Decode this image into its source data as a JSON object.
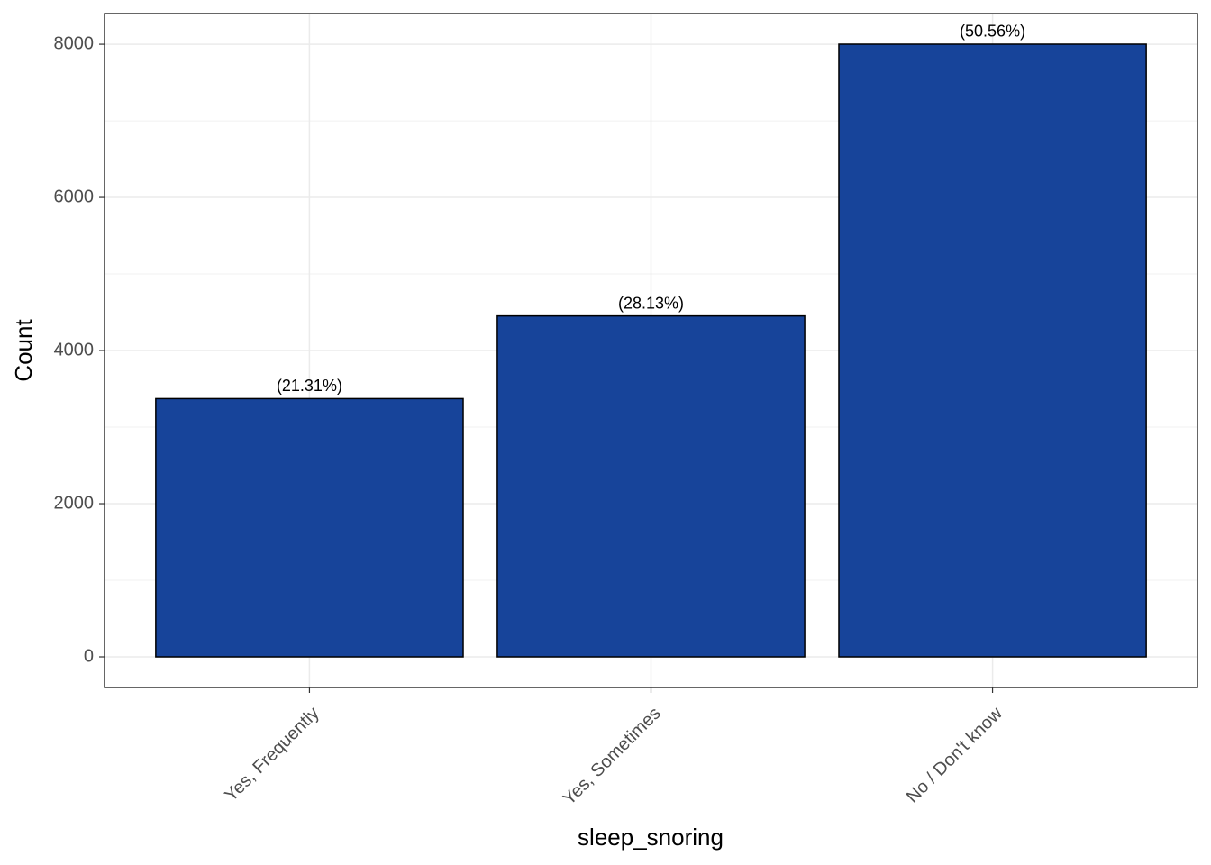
{
  "chart_data": {
    "type": "bar",
    "x_label": "sleep_snoring",
    "y_label": "Count",
    "categories": [
      "Yes, Frequently",
      "Yes, Sometimes",
      "No / Don't know"
    ],
    "values": [
      3372,
      4452,
      8001
    ],
    "annotations": [
      "(21.31%)",
      "(28.13%)",
      "(50.56%)"
    ],
    "color": "#17449a",
    "ylim": [
      -400,
      8401
    ],
    "yticks": [
      0,
      2000,
      4000,
      6000,
      8000
    ],
    "minor_yticks": [
      1000,
      3000,
      5000,
      7000
    ],
    "grid": true
  }
}
